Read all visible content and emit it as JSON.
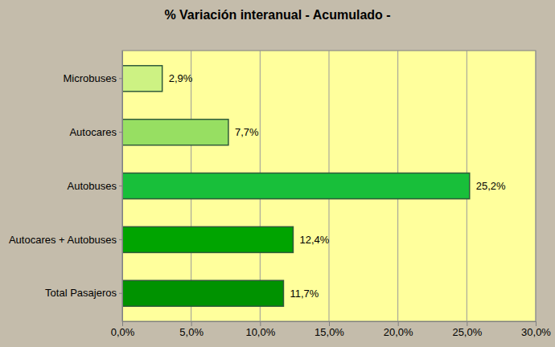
{
  "chart_data": {
    "type": "bar",
    "title": "% Variación interanual - Acumulado -",
    "orientation": "horizontal",
    "categories": [
      "Microbuses",
      "Autocares",
      "Autobuses",
      "Autocares + Autobuses",
      "Total Pasajeros"
    ],
    "values": [
      2.9,
      7.7,
      25.2,
      12.4,
      11.7
    ],
    "value_labels": [
      "2,9%",
      "7,7%",
      "25,2%",
      "12,4%",
      "11,7%"
    ],
    "colors": [
      "#cdf283",
      "#97df62",
      "#18bf3a",
      "#00a400",
      "#009200"
    ],
    "xlim": [
      0,
      30
    ],
    "xticks": [
      {
        "value": 0,
        "label": "0,0%"
      },
      {
        "value": 5,
        "label": "5,0%"
      },
      {
        "value": 10,
        "label": "10,0%"
      },
      {
        "value": 15,
        "label": "15,0%"
      },
      {
        "value": 20,
        "label": "20,0%"
      },
      {
        "value": 25,
        "label": "25,0%"
      },
      {
        "value": 30,
        "label": "30,0%"
      }
    ],
    "grid": true,
    "data_labels": true
  }
}
